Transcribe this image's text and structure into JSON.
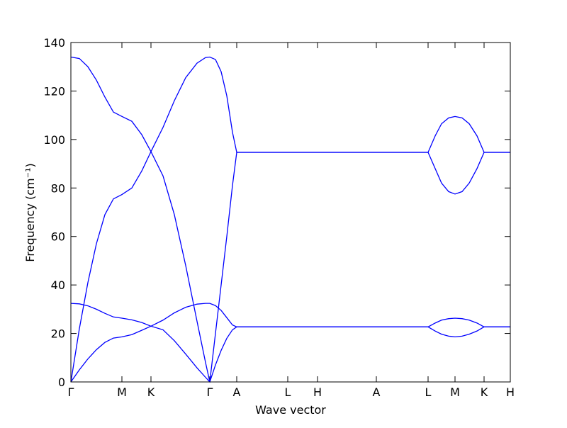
{
  "chart_data": {
    "type": "line",
    "xlabel": "Wave vector",
    "ylabel": "Frequency (cm⁻¹)",
    "color": "#0000ff",
    "xlim": [
      0,
      6.2
    ],
    "ylim": [
      0,
      140
    ],
    "xticks": [
      {
        "value": 0,
        "label": "Γ"
      },
      {
        "value": 0.72,
        "label": "M"
      },
      {
        "value": 1.13,
        "label": "K"
      },
      {
        "value": 1.96,
        "label": "Γ"
      },
      {
        "value": 2.34,
        "label": "A"
      },
      {
        "value": 3.06,
        "label": "L"
      },
      {
        "value": 3.48,
        "label": "H"
      },
      {
        "value": 4.31,
        "label": "A"
      },
      {
        "value": 5.04,
        "label": "L"
      },
      {
        "value": 5.42,
        "label": "M"
      },
      {
        "value": 5.83,
        "label": "K"
      },
      {
        "value": 6.2,
        "label": "H"
      }
    ],
    "yticks": [
      0,
      20,
      40,
      60,
      80,
      100,
      120,
      140
    ],
    "x": [
      0,
      0.12,
      0.24,
      0.36,
      0.48,
      0.6,
      0.72,
      0.86,
      1.0,
      1.13,
      1.3,
      1.46,
      1.62,
      1.78,
      1.9,
      1.96,
      2.04,
      2.12,
      2.2,
      2.28,
      2.34,
      3.06,
      3.48,
      4.31,
      5.04,
      5.14,
      5.23,
      5.33,
      5.42,
      5.52,
      5.62,
      5.73,
      5.83,
      6.2
    ],
    "series": [
      {
        "values": [
          0,
          5,
          9.5,
          13.3,
          16.3,
          18.1,
          18.6,
          19.5,
          21.3,
          23,
          21.5,
          17,
          11.5,
          5.8,
          1.9,
          0,
          7,
          13,
          18,
          21.5,
          22.7,
          22.7,
          22.7,
          22.7,
          22.7,
          21,
          19.7,
          18.9,
          18.6,
          18.9,
          19.7,
          21,
          22.7,
          22.7
        ]
      },
      {
        "values": [
          32.4,
          32.2,
          31.4,
          30,
          28.3,
          26.8,
          26.3,
          25.6,
          24.5,
          23,
          25.5,
          28.5,
          30.8,
          32.1,
          32.4,
          32.4,
          31.5,
          29.5,
          26.5,
          23.5,
          22.7,
          22.7,
          22.7,
          22.7,
          22.7,
          24.3,
          25.5,
          26.1,
          26.3,
          26.1,
          25.5,
          24.3,
          22.7,
          22.7
        ]
      },
      {
        "values": [
          0,
          22,
          41,
          57,
          69,
          75.5,
          77.3,
          80,
          87,
          95,
          85,
          69,
          48,
          25,
          8,
          0,
          20,
          40,
          60,
          81,
          94.7,
          94.7,
          94.7,
          94.7,
          94.7,
          88,
          82,
          78.5,
          77.5,
          78.5,
          82,
          88,
          94.7,
          94.7
        ]
      },
      {
        "values": [
          134,
          133.4,
          130,
          124.5,
          117.5,
          111.3,
          109.5,
          107.5,
          102,
          95,
          105,
          116,
          125.5,
          131.5,
          133.8,
          134,
          133,
          128,
          118,
          103,
          94.7,
          94.7,
          94.7,
          94.7,
          94.7,
          101.5,
          106.5,
          108.9,
          109.5,
          108.9,
          106.5,
          101.5,
          94.7,
          94.7
        ]
      }
    ]
  }
}
